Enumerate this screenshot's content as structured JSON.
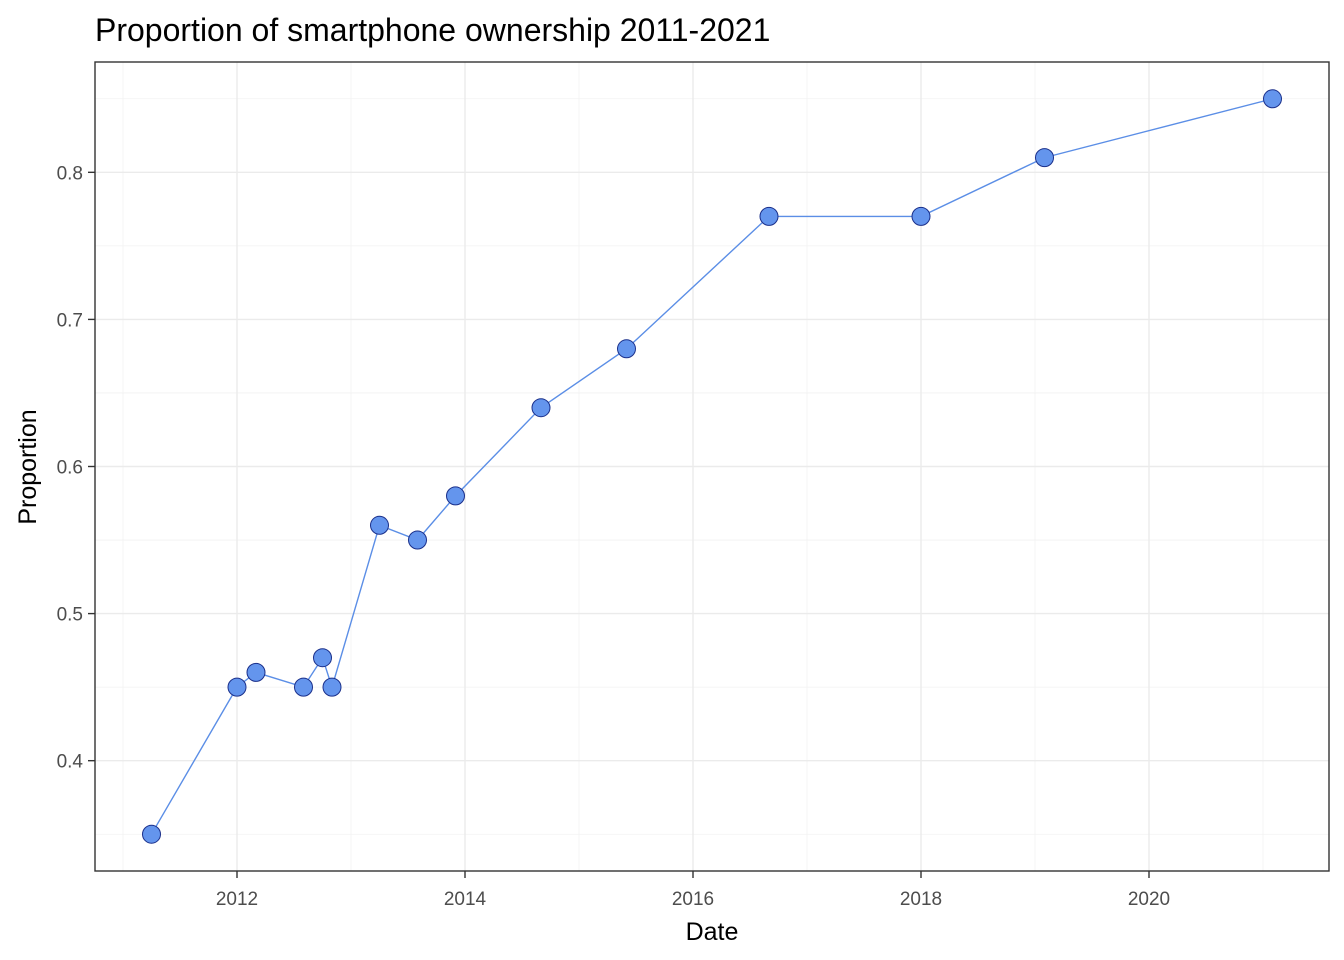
{
  "chart_data": {
    "type": "line",
    "title": "Proportion of smartphone ownership 2011-2021",
    "xlabel": "Date",
    "ylabel": "Proportion",
    "x_ticks": [
      "2012",
      "2014",
      "2016",
      "2018",
      "2020"
    ],
    "y_ticks": [
      "0.4",
      "0.5",
      "0.6",
      "0.7",
      "0.8"
    ],
    "ylim": [
      0.325,
      0.875
    ],
    "grid": true,
    "legend": "none",
    "colors": {
      "line": "#5b8ee6",
      "point_fill": "#6495ed",
      "point_stroke": "#1a2f8a"
    },
    "series": [
      {
        "points": [
          {
            "date": "2011-04-01",
            "y": 0.35
          },
          {
            "date": "2012-01-01",
            "y": 0.45
          },
          {
            "date": "2012-03-01",
            "y": 0.46
          },
          {
            "date": "2012-08-01",
            "y": 0.45
          },
          {
            "date": "2012-10-01",
            "y": 0.47
          },
          {
            "date": "2012-11-01",
            "y": 0.45
          },
          {
            "date": "2013-04-01",
            "y": 0.56
          },
          {
            "date": "2013-08-01",
            "y": 0.55
          },
          {
            "date": "2013-12-01",
            "y": 0.58
          },
          {
            "date": "2014-09-01",
            "y": 0.64
          },
          {
            "date": "2015-06-01",
            "y": 0.68
          },
          {
            "date": "2016-09-01",
            "y": 0.77
          },
          {
            "date": "2018-01-01",
            "y": 0.77
          },
          {
            "date": "2019-02-01",
            "y": 0.81
          },
          {
            "date": "2021-02-01",
            "y": 0.85
          }
        ]
      }
    ]
  }
}
